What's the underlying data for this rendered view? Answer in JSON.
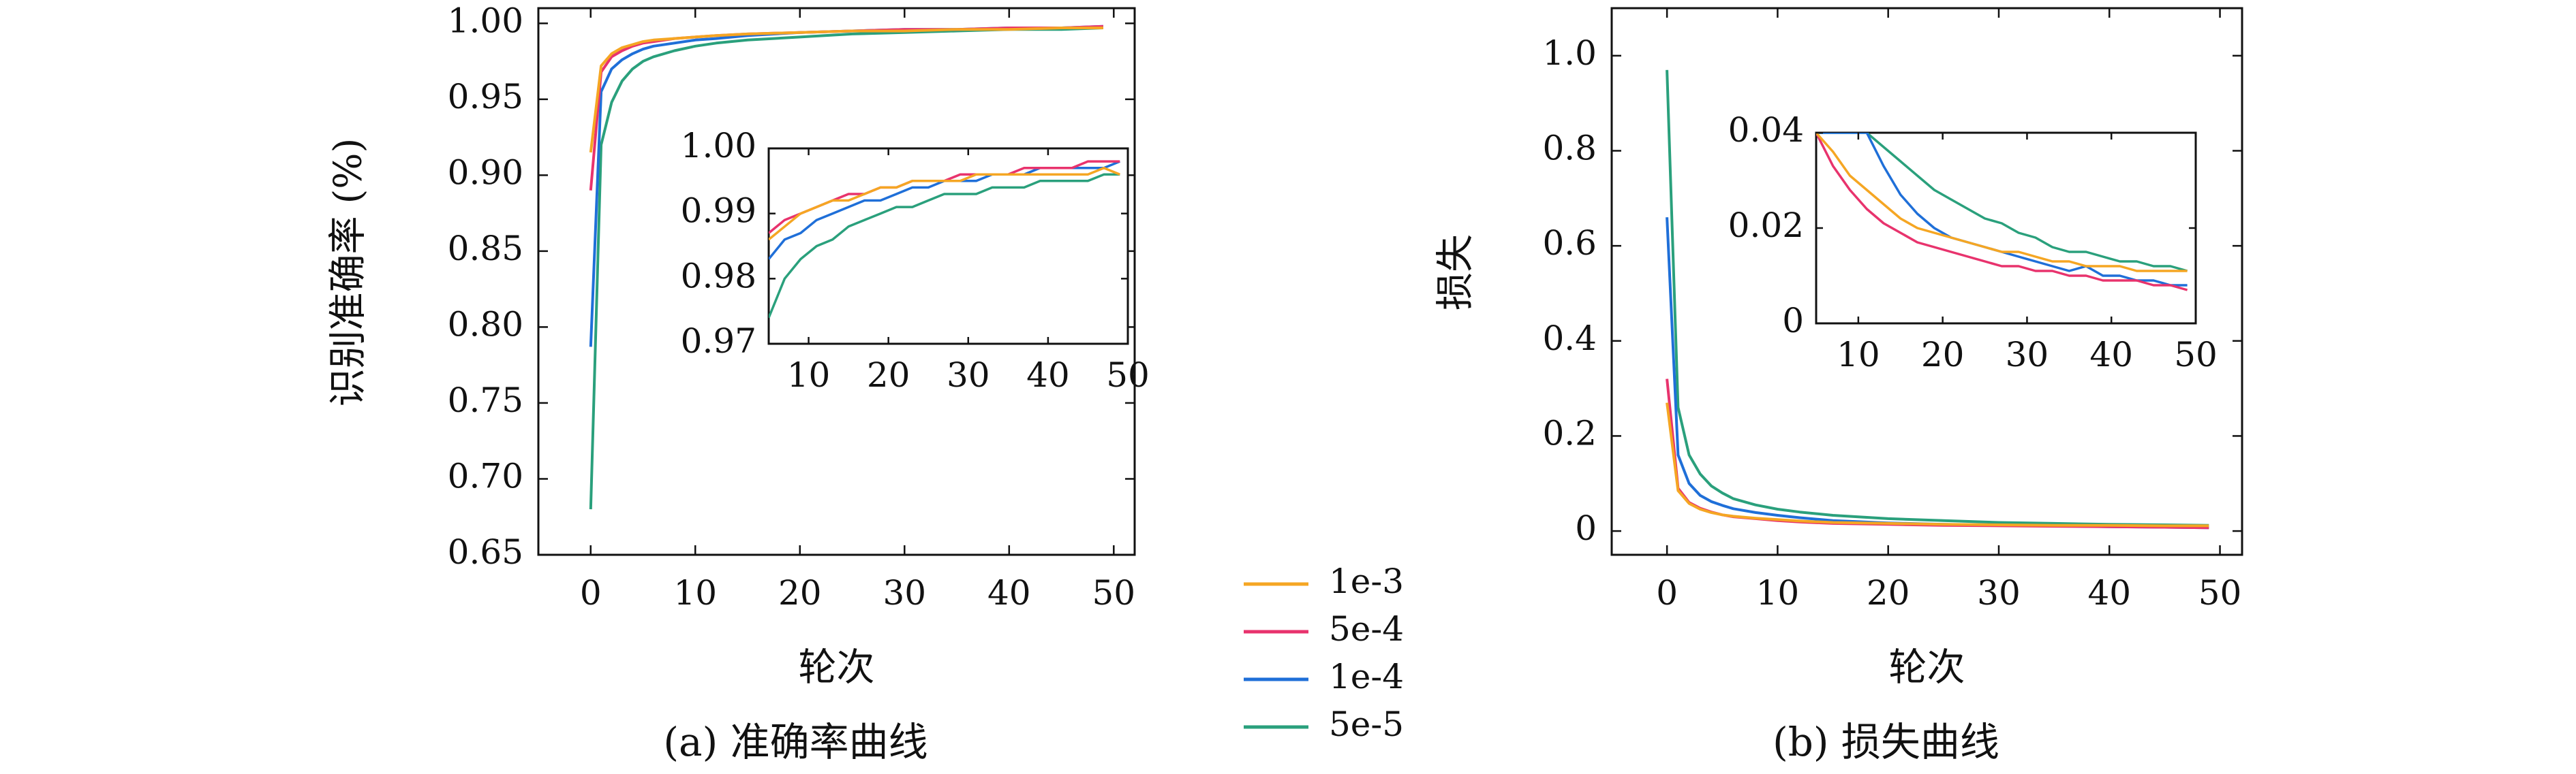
{
  "colors": {
    "1e-3": "#f5a623",
    "5e-4": "#e8336d",
    "1e-4": "#1f6fd8",
    "5e-5": "#2aa07c",
    "base": "#888888"
  },
  "legend": {
    "placement": "center-bottom",
    "entries": [
      {
        "label": "1e-3",
        "color": "#f5a623"
      },
      {
        "label": "5e-4",
        "color": "#e8336d"
      },
      {
        "label": "1e-4",
        "color": "#1f6fd8"
      },
      {
        "label": "5e-5",
        "color": "#2aa07c"
      }
    ]
  },
  "chart_data": [
    {
      "id": "accuracy",
      "type": "line",
      "caption": "(a) 准确率曲线",
      "xlabel": "轮次",
      "ylabel": "识别准确率 (%)",
      "xlim": [
        -5,
        52
      ],
      "ylim": [
        0.65,
        1.01
      ],
      "xticks": [
        0,
        10,
        20,
        30,
        40,
        50
      ],
      "yticks": [
        0.65,
        0.7,
        0.75,
        0.8,
        0.85,
        0.9,
        0.95,
        1.0
      ],
      "ytick_labels": [
        "0.65",
        "0.70",
        "0.75",
        "0.80",
        "0.85",
        "0.90",
        "0.95",
        "1.00"
      ],
      "grid": false,
      "series": [
        {
          "name": "5e-5",
          "color": "#2aa07c",
          "x": [
            0,
            1,
            2,
            3,
            4,
            5,
            6,
            8,
            10,
            12,
            15,
            20,
            25,
            30,
            35,
            40,
            45,
            49
          ],
          "y": [
            0.68,
            0.92,
            0.948,
            0.962,
            0.97,
            0.975,
            0.978,
            0.982,
            0.985,
            0.987,
            0.989,
            0.991,
            0.993,
            0.994,
            0.995,
            0.996,
            0.996,
            0.997
          ]
        },
        {
          "name": "1e-4",
          "color": "#1f6fd8",
          "x": [
            0,
            1,
            2,
            3,
            4,
            5,
            6,
            8,
            10,
            12,
            15,
            20,
            25,
            30,
            35,
            40,
            45,
            49
          ],
          "y": [
            0.787,
            0.955,
            0.97,
            0.976,
            0.98,
            0.983,
            0.985,
            0.987,
            0.989,
            0.99,
            0.992,
            0.994,
            0.995,
            0.996,
            0.996,
            0.997,
            0.997,
            0.998
          ]
        },
        {
          "name": "5e-4",
          "color": "#e8336d",
          "x": [
            0,
            1,
            2,
            3,
            4,
            5,
            6,
            8,
            10,
            12,
            15,
            20,
            25,
            30,
            35,
            40,
            45,
            49
          ],
          "y": [
            0.89,
            0.968,
            0.978,
            0.982,
            0.985,
            0.987,
            0.988,
            0.99,
            0.991,
            0.992,
            0.993,
            0.994,
            0.995,
            0.996,
            0.996,
            0.997,
            0.997,
            0.998
          ]
        },
        {
          "name": "1e-3",
          "color": "#f5a623",
          "x": [
            0,
            1,
            2,
            3,
            4,
            5,
            6,
            8,
            10,
            12,
            15,
            20,
            25,
            30,
            35,
            40,
            45,
            49
          ],
          "y": [
            0.915,
            0.972,
            0.98,
            0.984,
            0.986,
            0.988,
            0.989,
            0.99,
            0.991,
            0.992,
            0.993,
            0.994,
            0.995,
            0.995,
            0.996,
            0.996,
            0.997,
            0.997
          ]
        }
      ],
      "inset": {
        "xlim": [
          5,
          50
        ],
        "ylim": [
          0.97,
          1.0
        ],
        "xticks": [
          10,
          20,
          30,
          40,
          50
        ],
        "yticks": [
          0.97,
          0.98,
          0.99,
          1.0
        ],
        "ytick_labels": [
          "0.97",
          "0.98",
          "0.99",
          "1.00"
        ],
        "series": [
          {
            "name": "5e-5",
            "color": "#2aa07c",
            "x": [
              5,
              7,
              9,
              11,
              13,
              15,
              17,
              19,
              21,
              23,
              25,
              27,
              29,
              31,
              33,
              35,
              37,
              39,
              41,
              43,
              45,
              47,
              49
            ],
            "y": [
              0.974,
              0.98,
              0.983,
              0.985,
              0.986,
              0.988,
              0.989,
              0.99,
              0.991,
              0.991,
              0.992,
              0.993,
              0.993,
              0.993,
              0.994,
              0.994,
              0.994,
              0.995,
              0.995,
              0.995,
              0.995,
              0.996,
              0.996
            ]
          },
          {
            "name": "1e-4",
            "color": "#1f6fd8",
            "x": [
              5,
              7,
              9,
              11,
              13,
              15,
              17,
              19,
              21,
              23,
              25,
              27,
              29,
              31,
              33,
              35,
              37,
              39,
              41,
              43,
              45,
              47,
              49
            ],
            "y": [
              0.983,
              0.986,
              0.987,
              0.989,
              0.99,
              0.991,
              0.992,
              0.992,
              0.993,
              0.994,
              0.994,
              0.995,
              0.995,
              0.995,
              0.996,
              0.996,
              0.996,
              0.997,
              0.997,
              0.997,
              0.997,
              0.997,
              0.998
            ]
          },
          {
            "name": "5e-4",
            "color": "#e8336d",
            "x": [
              5,
              7,
              9,
              11,
              13,
              15,
              17,
              19,
              21,
              23,
              25,
              27,
              29,
              31,
              33,
              35,
              37,
              39,
              41,
              43,
              45,
              47,
              49
            ],
            "y": [
              0.987,
              0.989,
              0.99,
              0.991,
              0.992,
              0.993,
              0.993,
              0.994,
              0.994,
              0.995,
              0.995,
              0.995,
              0.996,
              0.996,
              0.996,
              0.996,
              0.997,
              0.997,
              0.997,
              0.997,
              0.998,
              0.998,
              0.998
            ]
          },
          {
            "name": "1e-3",
            "color": "#f5a623",
            "x": [
              5,
              7,
              9,
              11,
              13,
              15,
              17,
              19,
              21,
              23,
              25,
              27,
              29,
              31,
              33,
              35,
              37,
              39,
              41,
              43,
              45,
              47,
              49
            ],
            "y": [
              0.986,
              0.988,
              0.99,
              0.991,
              0.992,
              0.992,
              0.993,
              0.994,
              0.994,
              0.995,
              0.995,
              0.995,
              0.995,
              0.996,
              0.996,
              0.996,
              0.996,
              0.996,
              0.996,
              0.996,
              0.996,
              0.997,
              0.996
            ]
          }
        ]
      }
    },
    {
      "id": "loss",
      "type": "line",
      "caption": "(b) 损失曲线",
      "xlabel": "轮次",
      "ylabel": "损失",
      "xlim": [
        -5,
        52
      ],
      "ylim": [
        -0.05,
        1.1
      ],
      "xticks": [
        0,
        10,
        20,
        30,
        40,
        50
      ],
      "yticks": [
        0,
        0.2,
        0.4,
        0.6,
        0.8,
        1.0
      ],
      "ytick_labels": [
        "0",
        "0.2",
        "0.4",
        "0.6",
        "0.8",
        "1.0"
      ],
      "grid": false,
      "series": [
        {
          "name": "5e-5",
          "color": "#2aa07c",
          "x": [
            0,
            1,
            2,
            3,
            4,
            5,
            6,
            8,
            10,
            12,
            15,
            20,
            25,
            30,
            35,
            40,
            45,
            49
          ],
          "y": [
            0.97,
            0.26,
            0.16,
            0.12,
            0.095,
            0.08,
            0.068,
            0.055,
            0.046,
            0.04,
            0.033,
            0.026,
            0.022,
            0.018,
            0.016,
            0.014,
            0.013,
            0.012
          ]
        },
        {
          "name": "1e-4",
          "color": "#1f6fd8",
          "x": [
            0,
            1,
            2,
            3,
            4,
            5,
            6,
            8,
            10,
            12,
            15,
            20,
            25,
            30,
            35,
            40,
            45,
            49
          ],
          "y": [
            0.66,
            0.16,
            0.1,
            0.075,
            0.062,
            0.054,
            0.047,
            0.039,
            0.033,
            0.028,
            0.022,
            0.017,
            0.014,
            0.012,
            0.011,
            0.009,
            0.008,
            0.007
          ]
        },
        {
          "name": "5e-4",
          "color": "#e8336d",
          "x": [
            0,
            1,
            2,
            3,
            4,
            5,
            6,
            8,
            10,
            12,
            15,
            20,
            25,
            30,
            35,
            40,
            45,
            49
          ],
          "y": [
            0.32,
            0.09,
            0.06,
            0.048,
            0.04,
            0.034,
            0.03,
            0.026,
            0.022,
            0.019,
            0.016,
            0.014,
            0.012,
            0.011,
            0.01,
            0.009,
            0.008,
            0.007
          ]
        },
        {
          "name": "1e-3",
          "color": "#f5a623",
          "x": [
            0,
            1,
            2,
            3,
            4,
            5,
            6,
            8,
            10,
            12,
            15,
            20,
            25,
            30,
            35,
            40,
            45,
            49
          ],
          "y": [
            0.27,
            0.085,
            0.058,
            0.046,
            0.039,
            0.034,
            0.031,
            0.027,
            0.024,
            0.021,
            0.018,
            0.016,
            0.014,
            0.013,
            0.012,
            0.012,
            0.011,
            0.011
          ]
        }
      ],
      "inset": {
        "xlim": [
          5,
          50
        ],
        "ylim": [
          0,
          0.04
        ],
        "xticks": [
          10,
          20,
          30,
          40,
          50
        ],
        "yticks": [
          0,
          0.02,
          0.04
        ],
        "ytick_labels": [
          "0",
          "0.02",
          "0.04"
        ],
        "series": [
          {
            "name": "5e-5",
            "color": "#2aa07c",
            "x": [
              5,
              7,
              9,
              11,
              13,
              15,
              17,
              19,
              21,
              23,
              25,
              27,
              29,
              31,
              33,
              35,
              37,
              39,
              41,
              43,
              45,
              47,
              49
            ],
            "y": [
              0.04,
              0.04,
              0.04,
              0.04,
              0.037,
              0.034,
              0.031,
              0.028,
              0.026,
              0.024,
              0.022,
              0.021,
              0.019,
              0.018,
              0.016,
              0.015,
              0.015,
              0.014,
              0.013,
              0.013,
              0.012,
              0.012,
              0.011
            ]
          },
          {
            "name": "1e-4",
            "color": "#1f6fd8",
            "x": [
              5,
              7,
              9,
              11,
              13,
              15,
              17,
              19,
              21,
              23,
              25,
              27,
              29,
              31,
              33,
              35,
              37,
              39,
              41,
              43,
              45,
              47,
              49
            ],
            "y": [
              0.04,
              0.04,
              0.04,
              0.04,
              0.033,
              0.027,
              0.023,
              0.02,
              0.018,
              0.017,
              0.016,
              0.015,
              0.014,
              0.013,
              0.012,
              0.011,
              0.012,
              0.01,
              0.01,
              0.009,
              0.009,
              0.008,
              0.008
            ]
          },
          {
            "name": "5e-4",
            "color": "#e8336d",
            "x": [
              5,
              7,
              9,
              11,
              13,
              15,
              17,
              19,
              21,
              23,
              25,
              27,
              29,
              31,
              33,
              35,
              37,
              39,
              41,
              43,
              45,
              47,
              49
            ],
            "y": [
              0.04,
              0.033,
              0.028,
              0.024,
              0.021,
              0.019,
              0.017,
              0.016,
              0.015,
              0.014,
              0.013,
              0.012,
              0.012,
              0.011,
              0.011,
              0.01,
              0.01,
              0.009,
              0.009,
              0.009,
              0.008,
              0.008,
              0.007
            ]
          },
          {
            "name": "1e-3",
            "color": "#f5a623",
            "x": [
              5,
              7,
              9,
              11,
              13,
              15,
              17,
              19,
              21,
              23,
              25,
              27,
              29,
              31,
              33,
              35,
              37,
              39,
              41,
              43,
              45,
              47,
              49
            ],
            "y": [
              0.04,
              0.036,
              0.031,
              0.028,
              0.025,
              0.022,
              0.02,
              0.019,
              0.018,
              0.017,
              0.016,
              0.015,
              0.015,
              0.014,
              0.013,
              0.013,
              0.012,
              0.012,
              0.012,
              0.011,
              0.011,
              0.011,
              0.011
            ]
          }
        ]
      }
    }
  ]
}
